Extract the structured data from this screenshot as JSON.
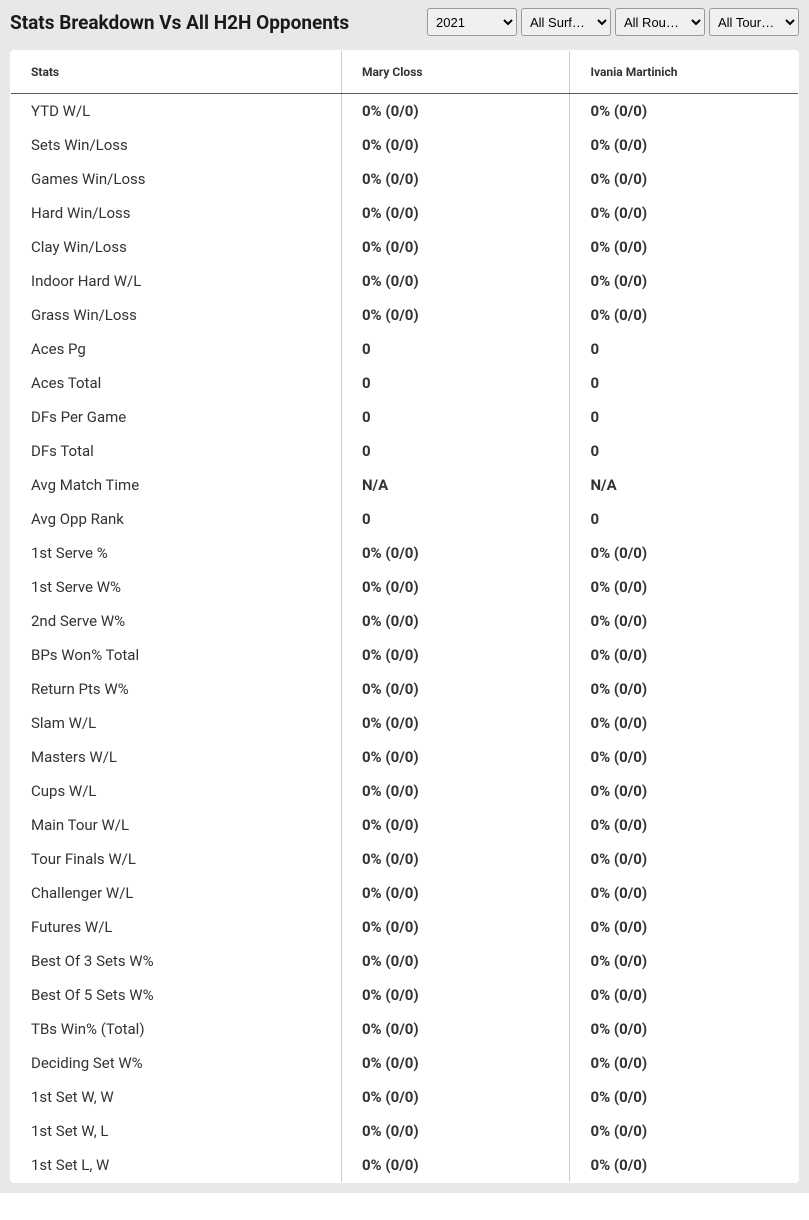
{
  "header": {
    "title": "Stats Breakdown Vs All H2H Opponents"
  },
  "filters": {
    "year": {
      "selected": "2021",
      "options": [
        "2021"
      ]
    },
    "surface": {
      "selected": "All Surf…",
      "options": [
        "All Surf…"
      ]
    },
    "round": {
      "selected": "All Rou…",
      "options": [
        "All Rou…"
      ]
    },
    "tournament": {
      "selected": "All Tour…",
      "options": [
        "All Tour…"
      ]
    }
  },
  "table": {
    "columns": [
      "Stats",
      "Mary Closs",
      "Ivania Martinich"
    ],
    "rows": [
      [
        "YTD W/L",
        "0% (0/0)",
        "0% (0/0)"
      ],
      [
        "Sets Win/Loss",
        "0% (0/0)",
        "0% (0/0)"
      ],
      [
        "Games Win/Loss",
        "0% (0/0)",
        "0% (0/0)"
      ],
      [
        "Hard Win/Loss",
        "0% (0/0)",
        "0% (0/0)"
      ],
      [
        "Clay Win/Loss",
        "0% (0/0)",
        "0% (0/0)"
      ],
      [
        "Indoor Hard W/L",
        "0% (0/0)",
        "0% (0/0)"
      ],
      [
        "Grass Win/Loss",
        "0% (0/0)",
        "0% (0/0)"
      ],
      [
        "Aces Pg",
        "0",
        "0"
      ],
      [
        "Aces Total",
        "0",
        "0"
      ],
      [
        "DFs Per Game",
        "0",
        "0"
      ],
      [
        "DFs Total",
        "0",
        "0"
      ],
      [
        "Avg Match Time",
        "N/A",
        "N/A"
      ],
      [
        "Avg Opp Rank",
        "0",
        "0"
      ],
      [
        "1st Serve %",
        "0% (0/0)",
        "0% (0/0)"
      ],
      [
        "1st Serve W%",
        "0% (0/0)",
        "0% (0/0)"
      ],
      [
        "2nd Serve W%",
        "0% (0/0)",
        "0% (0/0)"
      ],
      [
        "BPs Won% Total",
        "0% (0/0)",
        "0% (0/0)"
      ],
      [
        "Return Pts W%",
        "0% (0/0)",
        "0% (0/0)"
      ],
      [
        "Slam W/L",
        "0% (0/0)",
        "0% (0/0)"
      ],
      [
        "Masters W/L",
        "0% (0/0)",
        "0% (0/0)"
      ],
      [
        "Cups W/L",
        "0% (0/0)",
        "0% (0/0)"
      ],
      [
        "Main Tour W/L",
        "0% (0/0)",
        "0% (0/0)"
      ],
      [
        "Tour Finals W/L",
        "0% (0/0)",
        "0% (0/0)"
      ],
      [
        "Challenger W/L",
        "0% (0/0)",
        "0% (0/0)"
      ],
      [
        "Futures W/L",
        "0% (0/0)",
        "0% (0/0)"
      ],
      [
        "Best Of 3 Sets W%",
        "0% (0/0)",
        "0% (0/0)"
      ],
      [
        "Best Of 5 Sets W%",
        "0% (0/0)",
        "0% (0/0)"
      ],
      [
        "TBs Win% (Total)",
        "0% (0/0)",
        "0% (0/0)"
      ],
      [
        "Deciding Set W%",
        "0% (0/0)",
        "0% (0/0)"
      ],
      [
        "1st Set W, W",
        "0% (0/0)",
        "0% (0/0)"
      ],
      [
        "1st Set W, L",
        "0% (0/0)",
        "0% (0/0)"
      ],
      [
        "1st Set L, W",
        "0% (0/0)",
        "0% (0/0)"
      ]
    ]
  },
  "styles": {
    "header_bg": "#e8e8e8",
    "table_border": "#5a5a5a",
    "cell_divider": "#cccccc",
    "body_bg": "#ffffff",
    "text_color": "#333333",
    "title_fontsize": 19,
    "header_cell_fontsize": 12,
    "body_cell_fontsize": 15
  }
}
